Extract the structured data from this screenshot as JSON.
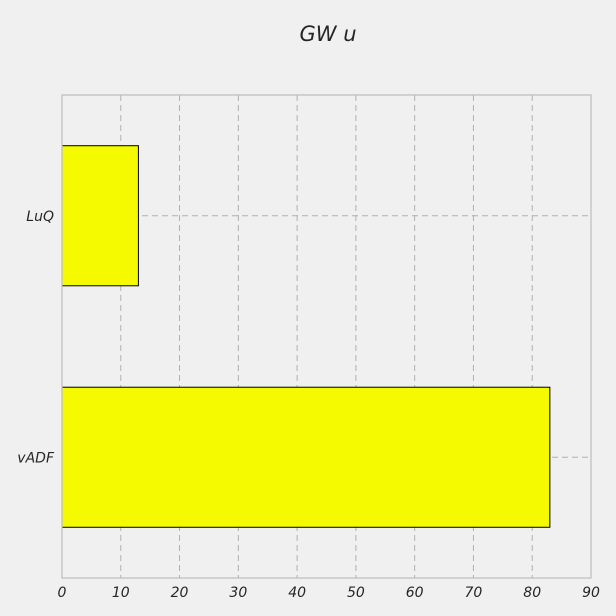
{
  "chart_data": {
    "type": "bar",
    "orientation": "horizontal",
    "title": "GW u",
    "xlabel": "",
    "ylabel": "",
    "categories": [
      "vADF",
      "LuQ"
    ],
    "values": [
      83,
      13
    ],
    "xlim": [
      0,
      90
    ],
    "xticks": [
      0,
      10,
      20,
      30,
      40,
      50,
      60,
      70,
      80,
      90
    ],
    "grid": true,
    "legend": "none",
    "bar_color": "#f5fa00",
    "edge_color": "#000000",
    "background_color": "#f0f0f0"
  }
}
